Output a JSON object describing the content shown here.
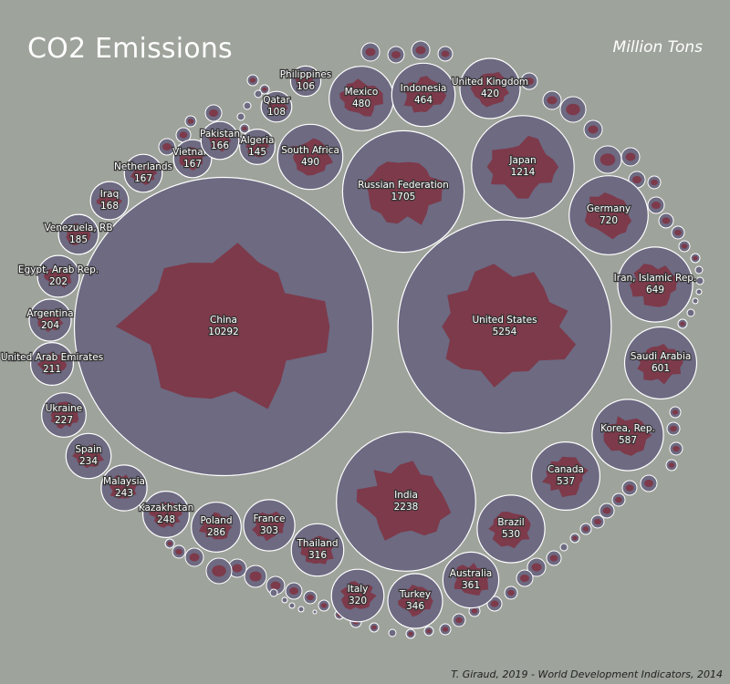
{
  "chart_data": {
    "type": "bubble",
    "title": "CO2 Emissions",
    "subtitle": "Million Tons",
    "source": "T. Giraud, 2019 - World Development Indicators, 2014",
    "colors": {
      "background": "#9ea39b",
      "bubble_fill": "#6d6a82",
      "bubble_stroke": "#ffffff",
      "country_fill": "#7d3a4a",
      "label_text": "#ffffff",
      "label_halo": "#333333"
    },
    "labeled": [
      {
        "name": "China",
        "value": 10292
      },
      {
        "name": "United States",
        "value": 5254
      },
      {
        "name": "India",
        "value": 2238
      },
      {
        "name": "Russian Federation",
        "value": 1705
      },
      {
        "name": "Japan",
        "value": 1214
      },
      {
        "name": "Germany",
        "value": 720
      },
      {
        "name": "Iran, Islamic Rep.",
        "value": 649
      },
      {
        "name": "Saudi Arabia",
        "value": 601
      },
      {
        "name": "Korea, Rep.",
        "value": 587
      },
      {
        "name": "Canada",
        "value": 537
      },
      {
        "name": "Brazil",
        "value": 530
      },
      {
        "name": "South Africa",
        "value": 490
      },
      {
        "name": "Mexico",
        "value": 480
      },
      {
        "name": "Indonesia",
        "value": 464
      },
      {
        "name": "United Kingdom",
        "value": 420
      },
      {
        "name": "Australia",
        "value": 361
      },
      {
        "name": "Turkey",
        "value": 346
      },
      {
        "name": "Italy",
        "value": 320
      },
      {
        "name": "Thailand",
        "value": 316
      },
      {
        "name": "France",
        "value": 303
      },
      {
        "name": "Poland",
        "value": 286
      },
      {
        "name": "Kazakhstan",
        "value": 248
      },
      {
        "name": "Malaysia",
        "value": 243
      },
      {
        "name": "Spain",
        "value": 234
      },
      {
        "name": "Ukraine",
        "value": 227
      },
      {
        "name": "United Arab Emirates",
        "value": 211
      },
      {
        "name": "Argentina",
        "value": 204
      },
      {
        "name": "Egypt, Arab Rep.",
        "value": 202
      },
      {
        "name": "Venezuela, RB",
        "value": 185
      },
      {
        "name": "Iraq",
        "value": 168
      },
      {
        "name": "Netherlands",
        "value": 167
      },
      {
        "name": "Vietnam",
        "value": 167
      },
      {
        "name": "Pakistan",
        "value": 166
      },
      {
        "name": "Algeria",
        "value": 145
      },
      {
        "name": "Qatar",
        "value": 108
      },
      {
        "name": "Philippines",
        "value": 106
      }
    ]
  }
}
